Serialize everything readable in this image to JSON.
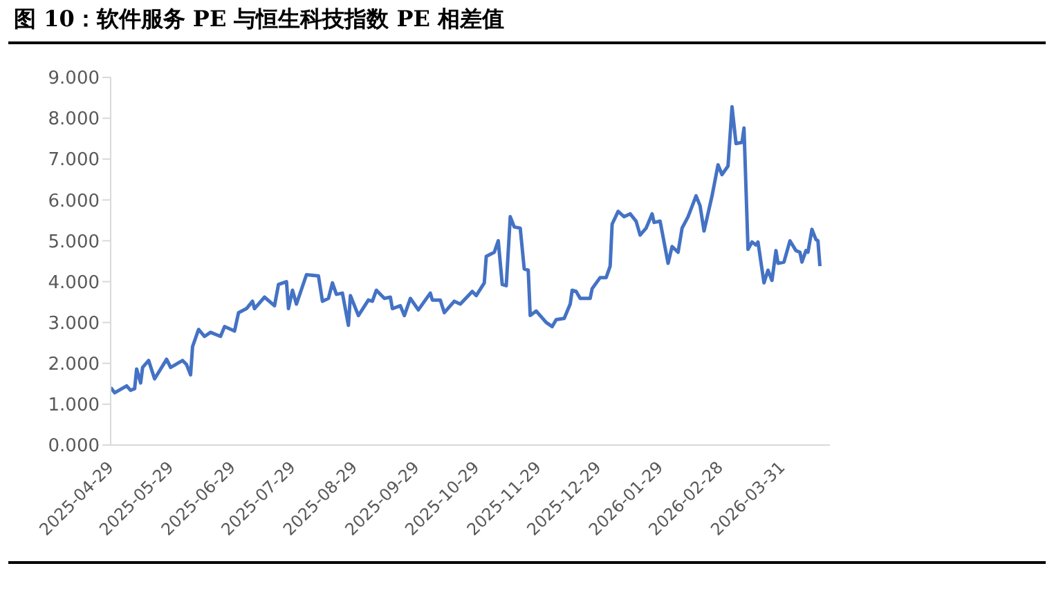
{
  "chart_data": {
    "type": "line",
    "title": "图 10：软件服务 PE 与恒生科技指数 PE 相差值",
    "x": [
      "2025-04-29",
      "2025-05-01",
      "2025-05-07",
      "2025-05-09",
      "2025-05-11",
      "2025-05-12",
      "2025-05-14",
      "2025-05-15",
      "2025-05-18",
      "2025-05-21",
      "2025-05-27",
      "2025-05-29",
      "2025-06-04",
      "2025-06-06",
      "2025-06-08",
      "2025-06-09",
      "2025-06-12",
      "2025-06-15",
      "2025-06-18",
      "2025-06-23",
      "2025-06-25",
      "2025-06-30",
      "2025-07-02",
      "2025-07-06",
      "2025-07-09",
      "2025-07-10",
      "2025-07-15",
      "2025-07-20",
      "2025-07-22",
      "2025-07-26",
      "2025-07-27",
      "2025-07-29",
      "2025-07-31",
      "2025-08-05",
      "2025-08-11",
      "2025-08-13",
      "2025-08-16",
      "2025-08-18",
      "2025-08-20",
      "2025-08-23",
      "2025-08-26",
      "2025-08-27",
      "2025-08-31",
      "2025-09-05",
      "2025-09-07",
      "2025-09-09",
      "2025-09-13",
      "2025-09-16",
      "2025-09-17",
      "2025-09-21",
      "2025-09-23",
      "2025-09-26",
      "2025-09-30",
      "2025-10-06",
      "2025-10-07",
      "2025-10-11",
      "2025-10-13",
      "2025-10-18",
      "2025-10-21",
      "2025-10-27",
      "2025-10-29",
      "2025-11-02",
      "2025-11-03",
      "2025-11-07",
      "2025-11-09",
      "2025-11-11",
      "2025-11-13",
      "2025-11-15",
      "2025-11-17",
      "2025-11-20",
      "2025-11-22",
      "2025-11-24",
      "2025-11-25",
      "2025-11-28",
      "2025-12-03",
      "2025-12-06",
      "2025-12-08",
      "2025-12-12",
      "2025-12-15",
      "2025-12-16",
      "2025-12-18",
      "2025-12-20",
      "2025-12-25",
      "2025-12-26",
      "2025-12-30",
      "2026-01-02",
      "2026-01-04",
      "2026-01-05",
      "2026-01-08",
      "2026-01-11",
      "2026-01-14",
      "2026-01-17",
      "2026-01-19",
      "2026-01-22",
      "2026-01-25",
      "2026-01-26",
      "2026-01-29",
      "2026-02-02",
      "2026-02-04",
      "2026-02-07",
      "2026-02-09",
      "2026-02-12",
      "2026-02-16",
      "2026-02-18",
      "2026-02-20",
      "2026-02-24",
      "2026-02-27",
      "2026-03-01",
      "2026-03-04",
      "2026-03-06",
      "2026-03-08",
      "2026-03-11",
      "2026-03-12",
      "2026-03-14",
      "2026-03-16",
      "2026-03-18",
      "2026-03-19",
      "2026-03-22",
      "2026-03-24",
      "2026-03-26",
      "2026-03-28",
      "2026-03-29",
      "2026-04-01",
      "2026-04-04",
      "2026-04-07",
      "2026-04-09",
      "2026-04-10",
      "2026-04-12",
      "2026-04-13",
      "2026-04-15",
      "2026-04-17",
      "2026-04-18",
      "2026-04-19"
    ],
    "series": [
      {
        "color": "#4472c4",
        "values": [
          1.41,
          1.28,
          1.45,
          1.34,
          1.38,
          1.86,
          1.52,
          1.9,
          2.07,
          1.62,
          2.1,
          1.9,
          2.07,
          1.97,
          1.72,
          2.41,
          2.83,
          2.66,
          2.76,
          2.66,
          2.9,
          2.79,
          3.24,
          3.34,
          3.52,
          3.34,
          3.62,
          3.41,
          3.93,
          4.0,
          3.34,
          3.79,
          3.45,
          4.17,
          4.14,
          3.52,
          3.59,
          3.97,
          3.69,
          3.72,
          2.93,
          3.66,
          3.17,
          3.55,
          3.52,
          3.79,
          3.59,
          3.62,
          3.34,
          3.41,
          3.17,
          3.59,
          3.31,
          3.72,
          3.55,
          3.55,
          3.24,
          3.52,
          3.45,
          3.76,
          3.66,
          3.97,
          4.62,
          4.72,
          5.0,
          3.93,
          3.9,
          5.59,
          5.34,
          5.31,
          4.31,
          4.28,
          3.17,
          3.28,
          3.0,
          2.9,
          3.07,
          3.1,
          3.45,
          3.79,
          3.76,
          3.59,
          3.59,
          3.83,
          4.1,
          4.1,
          4.38,
          5.41,
          5.72,
          5.59,
          5.66,
          5.48,
          5.14,
          5.31,
          5.66,
          5.45,
          5.48,
          4.45,
          4.86,
          4.72,
          5.31,
          5.59,
          6.1,
          5.86,
          5.24,
          6.1,
          6.86,
          6.62,
          6.83,
          8.28,
          7.38,
          7.41,
          7.76,
          4.79,
          4.97,
          4.9,
          4.97,
          3.97,
          4.28,
          4.03,
          4.76,
          4.45,
          4.48,
          5.0,
          4.76,
          4.72,
          4.48,
          4.76,
          4.72,
          5.28,
          5.03,
          5.0,
          4.38
        ]
      }
    ],
    "xlim": [
      "2025-04-29",
      "2026-04-24"
    ],
    "xticks": [
      "2025-04-29",
      "2025-05-29",
      "2025-06-29",
      "2025-07-29",
      "2025-08-29",
      "2025-09-29",
      "2025-10-29",
      "2025-11-29",
      "2025-12-29",
      "2026-01-29",
      "2026-02-28",
      "2026-03-31"
    ],
    "ylim": [
      0,
      9
    ],
    "yticks": [
      {
        "value": 0,
        "label": "0.000"
      },
      {
        "value": 1,
        "label": "1.000"
      },
      {
        "value": 2,
        "label": "2.000"
      },
      {
        "value": 3,
        "label": "3.000"
      },
      {
        "value": 4,
        "label": "4.000"
      },
      {
        "value": 5,
        "label": "5.000"
      },
      {
        "value": 6,
        "label": "6.000"
      },
      {
        "value": 7,
        "label": "7.000"
      },
      {
        "value": 8,
        "label": "8.000"
      },
      {
        "value": 9,
        "label": "9.000"
      }
    ],
    "grid": false,
    "legend": false,
    "marker": "none",
    "line_style": "solid"
  }
}
